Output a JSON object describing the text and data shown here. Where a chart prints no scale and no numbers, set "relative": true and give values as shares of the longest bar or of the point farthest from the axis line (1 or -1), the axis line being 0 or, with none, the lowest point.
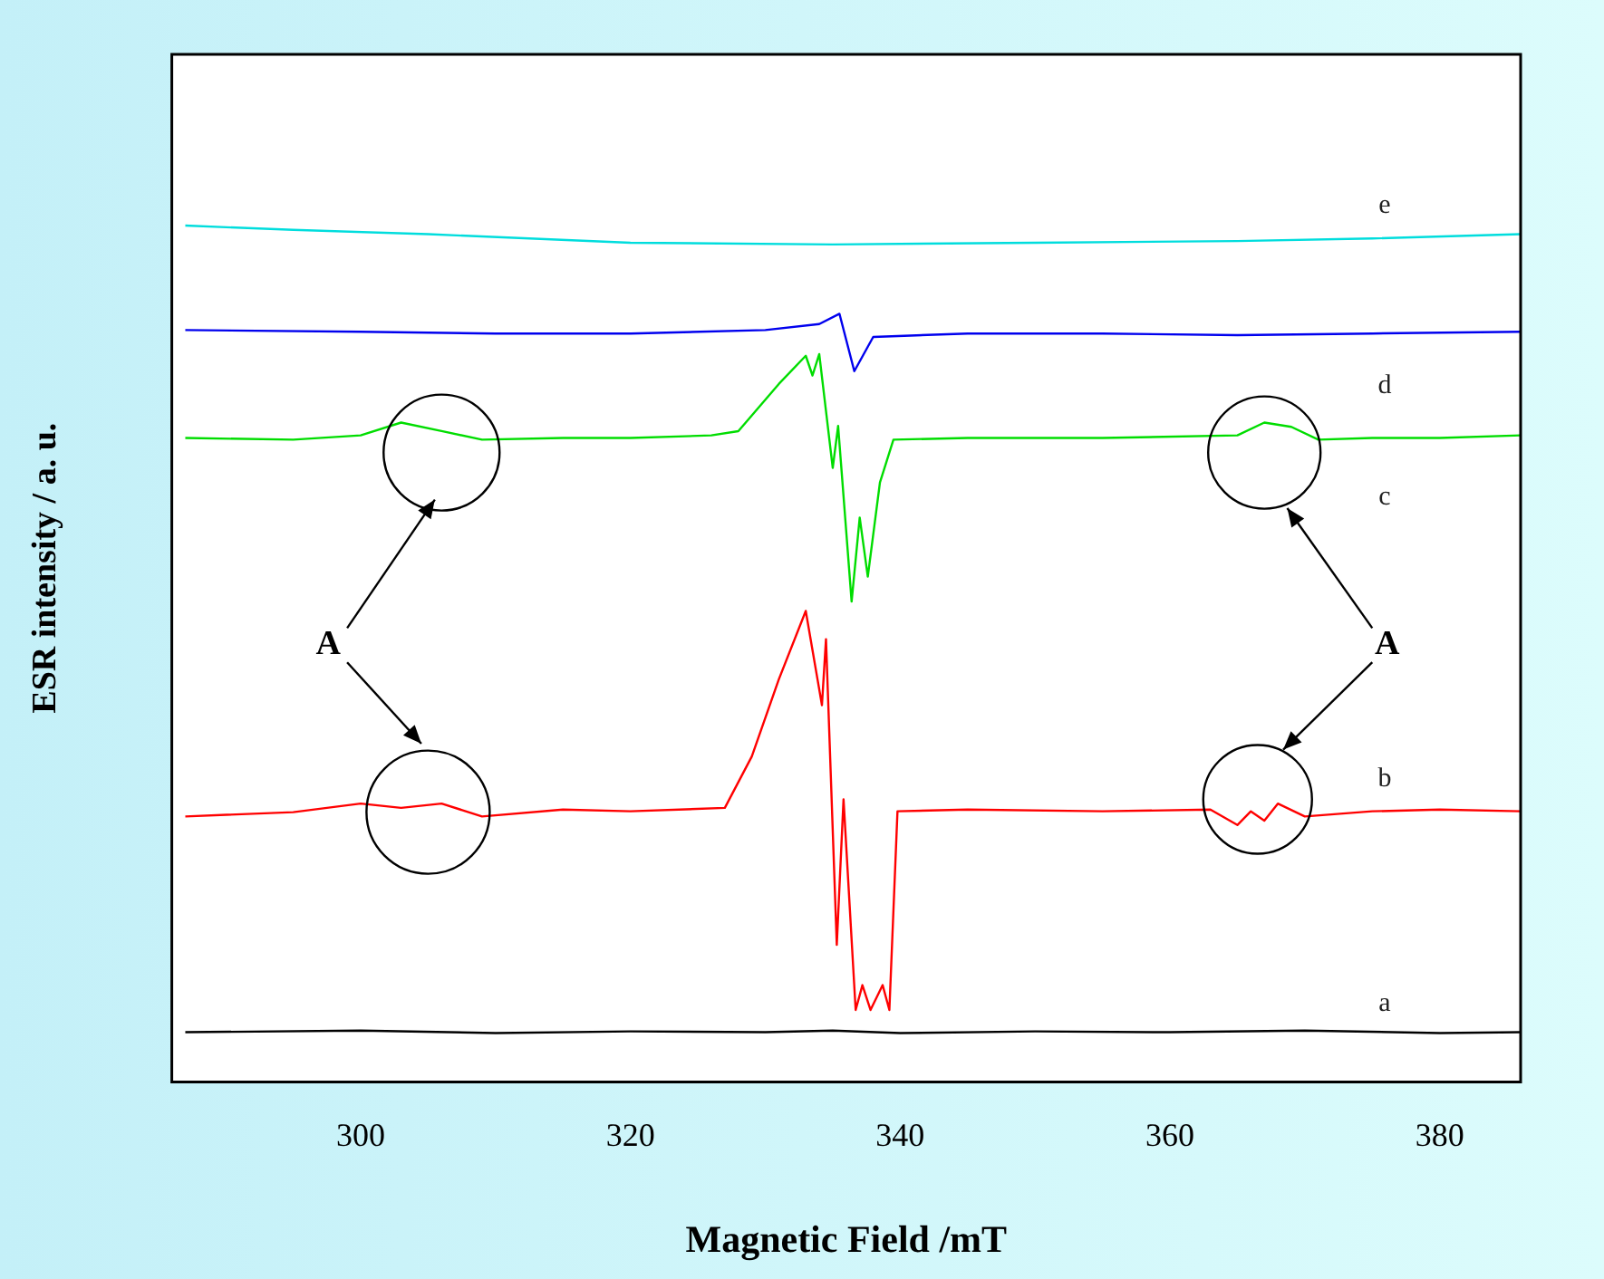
{
  "chart_data": {
    "type": "line",
    "relative": true,
    "xlabel": "Magnetic Field /mT",
    "ylabel": "ESR intensity / a. u.",
    "xlim": [
      286,
      386
    ],
    "xticks": [
      300,
      320,
      340,
      360,
      380
    ],
    "grid": false,
    "legend": false,
    "marker": "none",
    "line_style": "solid",
    "annotations": [
      "A",
      "A"
    ],
    "series": [
      {
        "name": "a",
        "color": "#000000",
        "x": [
          287,
          300,
          310,
          320,
          330,
          335,
          340,
          350,
          360,
          370,
          380,
          386
        ],
        "values": [
          0.058,
          0.06,
          0.057,
          0.059,
          0.058,
          0.06,
          0.057,
          0.059,
          0.058,
          0.06,
          0.057,
          0.058
        ]
      },
      {
        "name": "b",
        "color": "#ff0000",
        "x": [
          287,
          295,
          300,
          303,
          306,
          309,
          315,
          320,
          327,
          329,
          331,
          333,
          334.2,
          334.5,
          335.3,
          335.8,
          336.7,
          337.2,
          337.8,
          338.7,
          339.2,
          339.8,
          345,
          355,
          363,
          365,
          366,
          367,
          368,
          370,
          375,
          380,
          386
        ],
        "values": [
          0.31,
          0.315,
          0.325,
          0.32,
          0.325,
          0.31,
          0.318,
          0.316,
          0.32,
          0.38,
          0.47,
          0.55,
          0.44,
          0.517,
          0.16,
          0.33,
          0.084,
          0.113,
          0.084,
          0.113,
          0.084,
          0.316,
          0.318,
          0.316,
          0.318,
          0.3,
          0.316,
          0.305,
          0.325,
          0.31,
          0.316,
          0.318,
          0.316
        ]
      },
      {
        "name": "c",
        "color": "#00dd00",
        "x": [
          287,
          295,
          300,
          303,
          306,
          309,
          315,
          320,
          326,
          328,
          331,
          333,
          333.5,
          334,
          335,
          335.4,
          336.4,
          337,
          337.6,
          338.5,
          339.5,
          345,
          355,
          365,
          367,
          369,
          371,
          375,
          380,
          386
        ],
        "values": [
          0.752,
          0.75,
          0.755,
          0.77,
          0.76,
          0.75,
          0.752,
          0.752,
          0.755,
          0.76,
          0.815,
          0.848,
          0.825,
          0.85,
          0.717,
          0.766,
          0.561,
          0.659,
          0.59,
          0.7,
          0.75,
          0.752,
          0.752,
          0.755,
          0.77,
          0.765,
          0.75,
          0.752,
          0.752,
          0.755
        ]
      },
      {
        "name": "d",
        "color": "#0000ee",
        "x": [
          287,
          300,
          310,
          320,
          330,
          334,
          335.5,
          336.6,
          338,
          345,
          355,
          365,
          375,
          386
        ],
        "values": [
          0.878,
          0.876,
          0.874,
          0.874,
          0.878,
          0.885,
          0.897,
          0.83,
          0.87,
          0.874,
          0.874,
          0.872,
          0.874,
          0.876
        ]
      },
      {
        "name": "e",
        "color": "#00dddd",
        "x": [
          287,
          295,
          305,
          320,
          335,
          350,
          365,
          375,
          386
        ],
        "values": [
          1,
          0.995,
          0.99,
          0.98,
          0.978,
          0.98,
          0.982,
          0.985,
          0.99
        ]
      }
    ]
  }
}
